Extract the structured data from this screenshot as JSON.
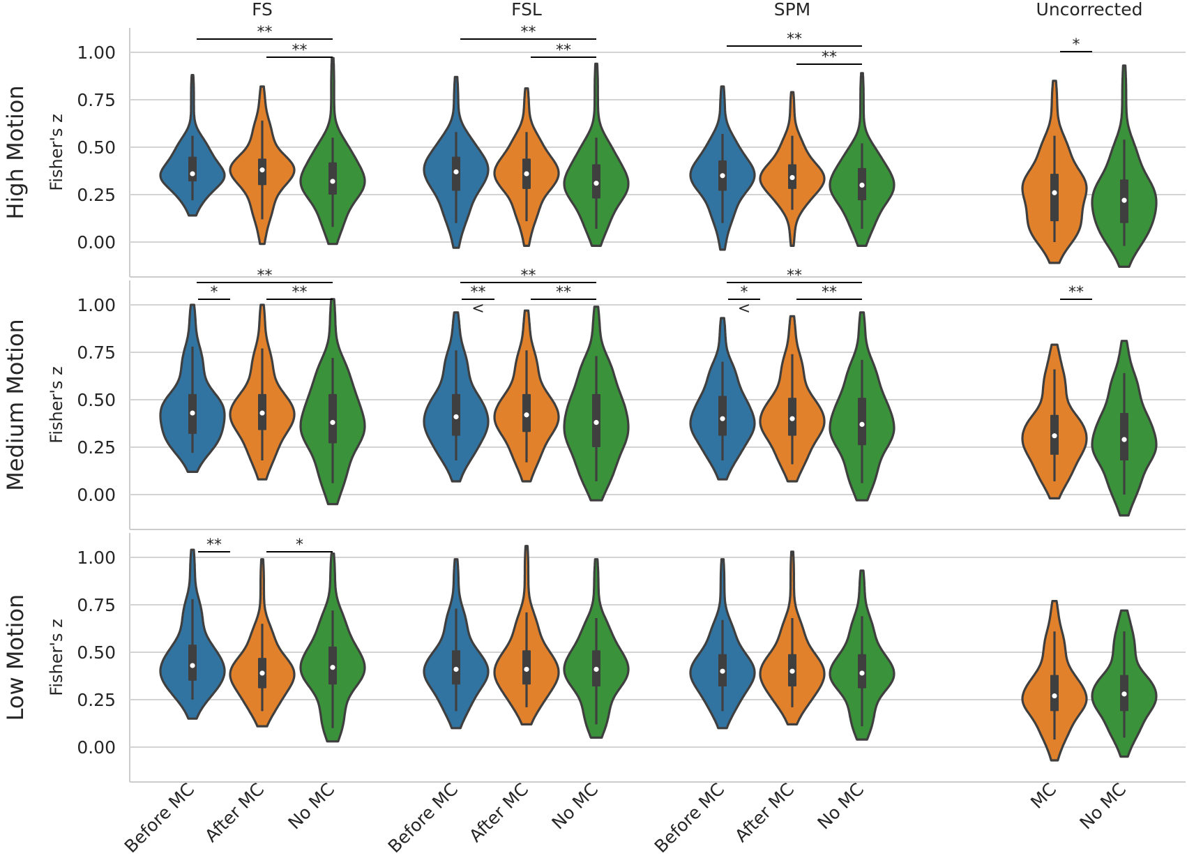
{
  "chart_data": {
    "type": "violin",
    "ylabel": "Fisher's z",
    "ylim": [
      -0.18,
      1.1
    ],
    "yticks": [
      "1.00",
      "0.75",
      "0.50",
      "0.25",
      "0.00"
    ],
    "yticks_values": [
      1.0,
      0.75,
      0.5,
      0.25,
      0.0
    ],
    "grid": "horizontal",
    "colors": {
      "Before MC": "#3274a1",
      "After MC": "#e1812c",
      "No MC": "#3a923a",
      "MC": "#e1812c",
      "edge": "#3f3f3f",
      "grid": "#d3d3d3",
      "axis": "#cccccc"
    },
    "columns": [
      {
        "name": "FS",
        "categories": [
          "Before MC",
          "After MC",
          "No MC"
        ]
      },
      {
        "name": "FSL",
        "categories": [
          "Before MC",
          "After MC",
          "No MC"
        ]
      },
      {
        "name": "SPM",
        "categories": [
          "Before MC",
          "After MC",
          "No MC"
        ]
      },
      {
        "name": "Uncorrected",
        "categories": [
          "MC",
          "No MC"
        ]
      }
    ],
    "rows": [
      {
        "name": "High Motion",
        "panels": [
          [
            {
              "min": 0.14,
              "q1": 0.32,
              "median": 0.36,
              "q3": 0.45,
              "max": 0.88,
              "wlo": 0.22,
              "whi": 0.56
            },
            {
              "min": -0.01,
              "q1": 0.3,
              "median": 0.38,
              "q3": 0.44,
              "max": 0.82,
              "wlo": 0.12,
              "whi": 0.64
            },
            {
              "min": -0.01,
              "q1": 0.25,
              "median": 0.32,
              "q3": 0.42,
              "max": 0.97,
              "wlo": 0.08,
              "whi": 0.55
            }
          ],
          [
            {
              "min": -0.03,
              "q1": 0.27,
              "median": 0.37,
              "q3": 0.45,
              "max": 0.87,
              "wlo": 0.1,
              "whi": 0.58
            },
            {
              "min": -0.02,
              "q1": 0.28,
              "median": 0.36,
              "q3": 0.44,
              "max": 0.81,
              "wlo": 0.11,
              "whi": 0.58
            },
            {
              "min": -0.02,
              "q1": 0.23,
              "median": 0.31,
              "q3": 0.41,
              "max": 0.94,
              "wlo": 0.07,
              "whi": 0.55
            }
          ],
          [
            {
              "min": -0.04,
              "q1": 0.27,
              "median": 0.35,
              "q3": 0.43,
              "max": 0.82,
              "wlo": 0.1,
              "whi": 0.57
            },
            {
              "min": -0.02,
              "q1": 0.28,
              "median": 0.34,
              "q3": 0.41,
              "max": 0.79,
              "wlo": 0.17,
              "whi": 0.56
            },
            {
              "min": -0.02,
              "q1": 0.22,
              "median": 0.3,
              "q3": 0.39,
              "max": 0.89,
              "wlo": 0.07,
              "whi": 0.52
            }
          ],
          [
            {
              "min": -0.11,
              "q1": 0.11,
              "median": 0.26,
              "q3": 0.36,
              "max": 0.85,
              "wlo": 0.0,
              "whi": 0.56
            },
            {
              "min": -0.13,
              "q1": 0.1,
              "median": 0.22,
              "q3": 0.33,
              "max": 0.93,
              "wlo": -0.02,
              "whi": 0.54
            }
          ]
        ],
        "sig": [
          [
            {
              "from": 0,
              "to": 2,
              "label": "**",
              "level": 2
            },
            {
              "from": 1,
              "to": 2,
              "label": "**",
              "level": 1
            }
          ],
          [
            {
              "from": 0,
              "to": 2,
              "label": "**",
              "level": 2
            },
            {
              "from": 1,
              "to": 2,
              "label": "**",
              "level": 1
            }
          ],
          [
            {
              "from": 0,
              "to": 2,
              "label": "**",
              "level": 2
            },
            {
              "from": 1,
              "to": 2,
              "label": "**",
              "level": 1
            }
          ],
          [
            {
              "from": 0,
              "to": 1,
              "label": "*",
              "level": 1
            }
          ]
        ]
      },
      {
        "name": "Medium Motion",
        "panels": [
          [
            {
              "min": 0.12,
              "q1": 0.32,
              "median": 0.43,
              "q3": 0.53,
              "max": 1.0,
              "wlo": 0.22,
              "whi": 0.78
            },
            {
              "min": 0.08,
              "q1": 0.34,
              "median": 0.43,
              "q3": 0.53,
              "max": 1.0,
              "wlo": 0.18,
              "whi": 0.77
            },
            {
              "min": -0.05,
              "q1": 0.27,
              "median": 0.38,
              "q3": 0.53,
              "max": 1.03,
              "wlo": 0.06,
              "whi": 0.72
            }
          ],
          [
            {
              "min": 0.07,
              "q1": 0.31,
              "median": 0.41,
              "q3": 0.53,
              "max": 0.96,
              "wlo": 0.18,
              "whi": 0.76
            },
            {
              "min": 0.07,
              "q1": 0.33,
              "median": 0.42,
              "q3": 0.53,
              "max": 0.97,
              "wlo": 0.17,
              "whi": 0.76
            },
            {
              "min": -0.03,
              "q1": 0.25,
              "median": 0.38,
              "q3": 0.53,
              "max": 0.99,
              "wlo": 0.07,
              "whi": 0.73
            }
          ],
          [
            {
              "min": 0.08,
              "q1": 0.31,
              "median": 0.4,
              "q3": 0.52,
              "max": 0.93,
              "wlo": 0.18,
              "whi": 0.7
            },
            {
              "min": 0.07,
              "q1": 0.31,
              "median": 0.4,
              "q3": 0.51,
              "max": 0.94,
              "wlo": 0.16,
              "whi": 0.74
            },
            {
              "min": -0.03,
              "q1": 0.26,
              "median": 0.37,
              "q3": 0.51,
              "max": 0.96,
              "wlo": 0.06,
              "whi": 0.71
            }
          ],
          [
            {
              "min": -0.02,
              "q1": 0.21,
              "median": 0.31,
              "q3": 0.42,
              "max": 0.79,
              "wlo": 0.07,
              "whi": 0.66
            },
            {
              "min": -0.11,
              "q1": 0.18,
              "median": 0.29,
              "q3": 0.43,
              "max": 0.81,
              "wlo": 0.0,
              "whi": 0.64
            }
          ]
        ],
        "sig": [
          [
            {
              "from": 0,
              "to": 2,
              "label": "**",
              "level": 2
            },
            {
              "from": 0,
              "to": 1,
              "label": "*",
              "level": 1
            },
            {
              "from": 1,
              "to": 2,
              "label": "**",
              "level": 1
            }
          ],
          [
            {
              "from": 0,
              "to": 2,
              "label": "**",
              "level": 2
            },
            {
              "from": 0,
              "to": 1,
              "label": "**",
              "level": 1,
              "note": "<"
            },
            {
              "from": 1,
              "to": 2,
              "label": "**",
              "level": 1
            }
          ],
          [
            {
              "from": 0,
              "to": 2,
              "label": "**",
              "level": 2
            },
            {
              "from": 0,
              "to": 1,
              "label": "*",
              "level": 1,
              "note": "<"
            },
            {
              "from": 1,
              "to": 2,
              "label": "**",
              "level": 1
            }
          ],
          [
            {
              "from": 0,
              "to": 1,
              "label": "**",
              "level": 1
            }
          ]
        ]
      },
      {
        "name": "Low Motion",
        "panels": [
          [
            {
              "min": 0.15,
              "q1": 0.35,
              "median": 0.43,
              "q3": 0.54,
              "max": 1.04,
              "wlo": 0.25,
              "whi": 0.78
            },
            {
              "min": 0.11,
              "q1": 0.31,
              "median": 0.39,
              "q3": 0.47,
              "max": 0.99,
              "wlo": 0.19,
              "whi": 0.65
            },
            {
              "min": 0.03,
              "q1": 0.33,
              "median": 0.42,
              "q3": 0.53,
              "max": 1.02,
              "wlo": 0.1,
              "whi": 0.72
            }
          ],
          [
            {
              "min": 0.1,
              "q1": 0.33,
              "median": 0.41,
              "q3": 0.51,
              "max": 0.99,
              "wlo": 0.19,
              "whi": 0.73
            },
            {
              "min": 0.12,
              "q1": 0.33,
              "median": 0.41,
              "q3": 0.51,
              "max": 1.06,
              "wlo": 0.21,
              "whi": 0.71
            },
            {
              "min": 0.05,
              "q1": 0.32,
              "median": 0.41,
              "q3": 0.51,
              "max": 0.99,
              "wlo": 0.12,
              "whi": 0.68
            }
          ],
          [
            {
              "min": 0.1,
              "q1": 0.32,
              "median": 0.4,
              "q3": 0.49,
              "max": 0.99,
              "wlo": 0.19,
              "whi": 0.67
            },
            {
              "min": 0.12,
              "q1": 0.32,
              "median": 0.4,
              "q3": 0.49,
              "max": 1.03,
              "wlo": 0.21,
              "whi": 0.68
            },
            {
              "min": 0.04,
              "q1": 0.31,
              "median": 0.39,
              "q3": 0.49,
              "max": 0.93,
              "wlo": 0.11,
              "whi": 0.69
            }
          ],
          [
            {
              "min": -0.07,
              "q1": 0.19,
              "median": 0.27,
              "q3": 0.38,
              "max": 0.77,
              "wlo": 0.04,
              "whi": 0.61
            },
            {
              "min": -0.05,
              "q1": 0.19,
              "median": 0.28,
              "q3": 0.38,
              "max": 0.72,
              "wlo": 0.05,
              "whi": 0.61
            }
          ]
        ],
        "sig": [
          [
            {
              "from": 0,
              "to": 1,
              "label": "**",
              "level": 1
            },
            {
              "from": 1,
              "to": 2,
              "label": "*",
              "level": 1
            }
          ],
          [],
          [],
          []
        ]
      }
    ]
  }
}
